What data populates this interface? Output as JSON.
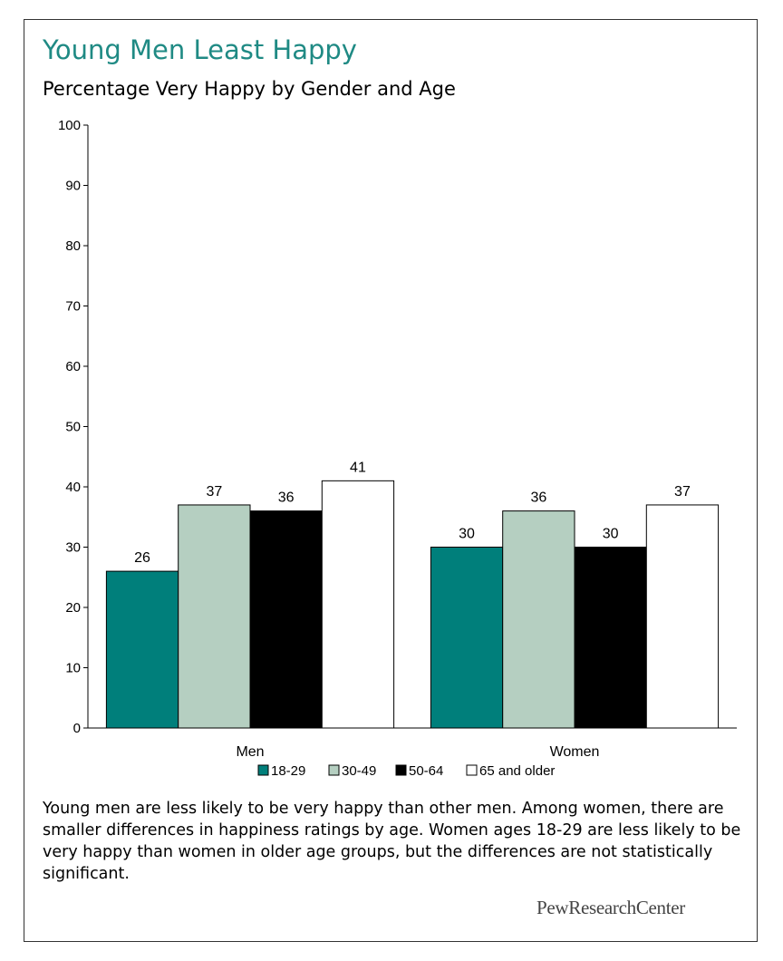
{
  "title": "Young Men Least Happy",
  "subtitle": "Percentage Very Happy by Gender and Age",
  "note": "Young men are less likely to be very happy than other men. Among women, there are smaller differences in happiness ratings by age. Women ages 18-29 are less likely to be very happy than women in older age groups, but the differences are not statistically significant.",
  "logo_text": "PewResearchCenter",
  "chart_data": {
    "type": "bar",
    "categories": [
      "Men",
      "Women"
    ],
    "series": [
      {
        "name": "18-29",
        "values": [
          26,
          30
        ],
        "color": "#007f7b"
      },
      {
        "name": "30-49",
        "values": [
          37,
          36
        ],
        "color": "#b5cfc1"
      },
      {
        "name": "50-64",
        "values": [
          36,
          30
        ],
        "color": "#000000"
      },
      {
        "name": "65 and older",
        "values": [
          41,
          37
        ],
        "color": "#ffffff"
      }
    ],
    "title": "Young Men Least Happy",
    "subtitle": "Percentage Very Happy by Gender and Age",
    "xlabel": "",
    "ylabel": "",
    "ylim": [
      0,
      100
    ],
    "yticks": [
      0,
      10,
      20,
      30,
      40,
      50,
      60,
      70,
      80,
      90,
      100
    ],
    "grid": false,
    "legend": "bottom",
    "data_labels": true
  }
}
